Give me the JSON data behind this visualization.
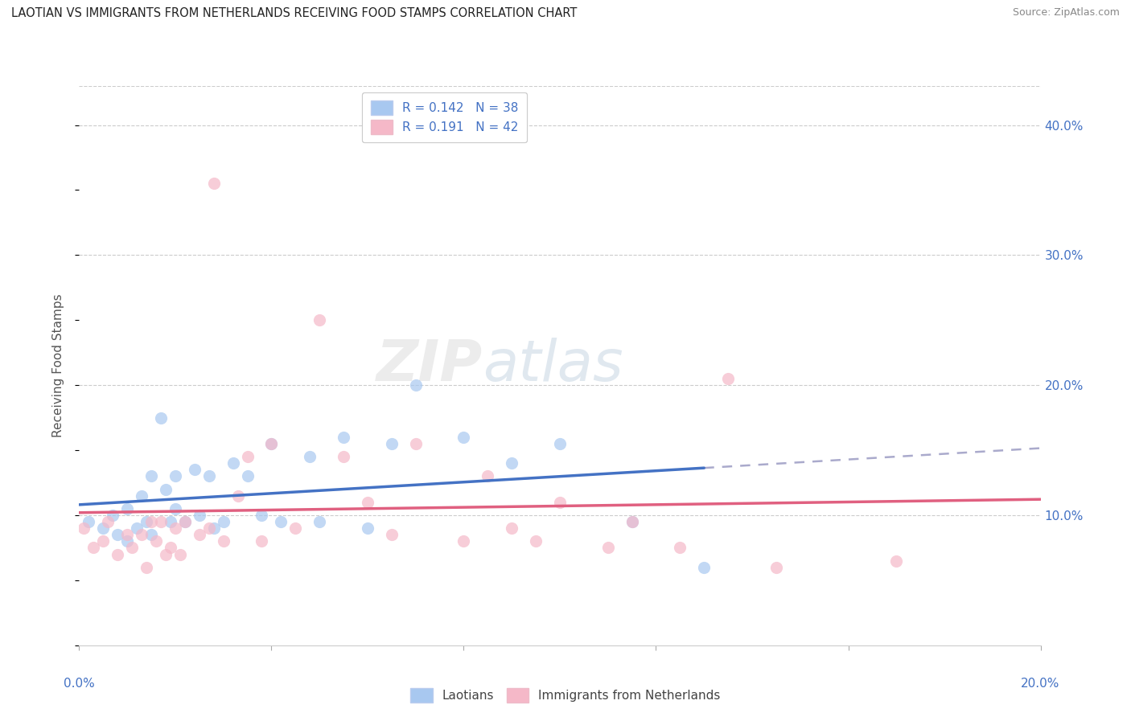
{
  "title": "LAOTIAN VS IMMIGRANTS FROM NETHERLANDS RECEIVING FOOD STAMPS CORRELATION CHART",
  "source": "Source: ZipAtlas.com",
  "ylabel": "Receiving Food Stamps",
  "ylabel_right_ticks": [
    "10.0%",
    "20.0%",
    "30.0%",
    "40.0%"
  ],
  "ylabel_right_values": [
    0.1,
    0.2,
    0.3,
    0.4
  ],
  "xlim": [
    0.0,
    0.2
  ],
  "ylim": [
    0.0,
    0.43
  ],
  "color_blue": "#A8C8F0",
  "color_pink": "#F5B8C8",
  "color_blue_line": "#4472C4",
  "color_pink_line": "#E06080",
  "color_dashed": "#AAAACC",
  "blue_x": [
    0.002,
    0.005,
    0.007,
    0.008,
    0.01,
    0.01,
    0.012,
    0.013,
    0.014,
    0.015,
    0.015,
    0.017,
    0.018,
    0.019,
    0.02,
    0.02,
    0.022,
    0.024,
    0.025,
    0.027,
    0.028,
    0.03,
    0.032,
    0.035,
    0.038,
    0.04,
    0.042,
    0.048,
    0.05,
    0.055,
    0.06,
    0.065,
    0.07,
    0.08,
    0.09,
    0.1,
    0.115,
    0.13
  ],
  "blue_y": [
    0.095,
    0.09,
    0.1,
    0.085,
    0.105,
    0.08,
    0.09,
    0.115,
    0.095,
    0.085,
    0.13,
    0.175,
    0.12,
    0.095,
    0.105,
    0.13,
    0.095,
    0.135,
    0.1,
    0.13,
    0.09,
    0.095,
    0.14,
    0.13,
    0.1,
    0.155,
    0.095,
    0.145,
    0.095,
    0.16,
    0.09,
    0.155,
    0.2,
    0.16,
    0.14,
    0.155,
    0.095,
    0.06
  ],
  "pink_x": [
    0.001,
    0.003,
    0.005,
    0.006,
    0.008,
    0.01,
    0.011,
    0.013,
    0.014,
    0.015,
    0.016,
    0.017,
    0.018,
    0.019,
    0.02,
    0.021,
    0.022,
    0.025,
    0.027,
    0.028,
    0.03,
    0.033,
    0.035,
    0.038,
    0.04,
    0.045,
    0.05,
    0.055,
    0.06,
    0.065,
    0.07,
    0.08,
    0.085,
    0.09,
    0.095,
    0.1,
    0.11,
    0.115,
    0.125,
    0.135,
    0.145,
    0.17
  ],
  "pink_y": [
    0.09,
    0.075,
    0.08,
    0.095,
    0.07,
    0.085,
    0.075,
    0.085,
    0.06,
    0.095,
    0.08,
    0.095,
    0.07,
    0.075,
    0.09,
    0.07,
    0.095,
    0.085,
    0.09,
    0.355,
    0.08,
    0.115,
    0.145,
    0.08,
    0.155,
    0.09,
    0.25,
    0.145,
    0.11,
    0.085,
    0.155,
    0.08,
    0.13,
    0.09,
    0.08,
    0.11,
    0.075,
    0.095,
    0.075,
    0.205,
    0.06,
    0.065
  ],
  "blue_line_x_end": 0.13,
  "blue_line_x_dashed_end": 0.2
}
